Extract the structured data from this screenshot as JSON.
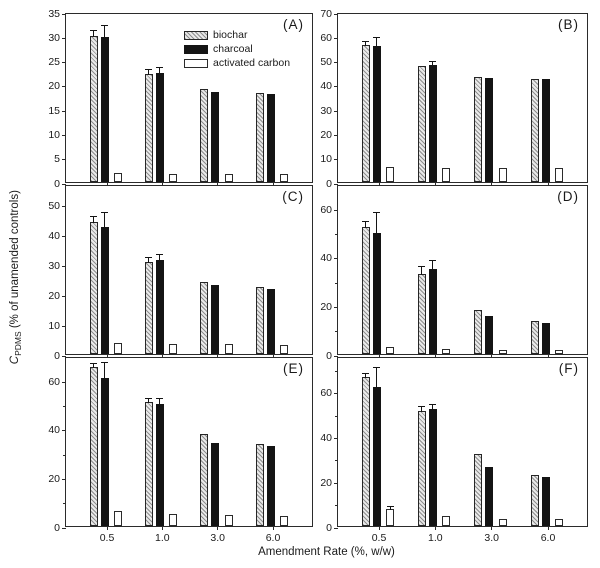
{
  "colors": {
    "background": "#ffffff",
    "axis": "#2b2b2b",
    "text": "#1a1a1a",
    "bar_charcoal": "#141414",
    "bar_biochar_hatch_line": "#8f8f8f",
    "bar_biochar_hatch_bg": "#e9e9e9",
    "bar_activated_carbon": "#ffffff"
  },
  "legend": {
    "items": [
      {
        "label": "biochar",
        "swatch": "hatch"
      },
      {
        "label": "charcoal",
        "swatch": "solid"
      },
      {
        "label": "activated carbon",
        "swatch": "outline"
      }
    ]
  },
  "chart_data": {
    "type": "bar",
    "layout": "2x3 panel grid, grouped bars with error bars, grid off, legend inside panel A",
    "categories": [
      "0.5",
      "1.0",
      "3.0",
      "6.0"
    ],
    "x_label": "Amendment Rate (%, w/w)",
    "y_label": "CPDMS (% of unamended controls)",
    "y_label_parts": {
      "symbol": "C",
      "subscript": "PDMS",
      "rest": " (% of unamended controls)"
    },
    "series_names": [
      "biochar",
      "charcoal",
      "activated carbon"
    ],
    "panels": [
      {
        "id": "A",
        "label": "(A)",
        "ylim": [
          0,
          35
        ],
        "yticks": [
          0,
          5,
          10,
          15,
          20,
          25,
          30,
          35
        ],
        "minor_yticks": [],
        "series": [
          {
            "name": "biochar",
            "values": [
              30.1,
              22.2,
              19.1,
              18.4
            ],
            "errors": [
              0.9,
              0.8,
              0,
              0
            ]
          },
          {
            "name": "charcoal",
            "values": [
              29.8,
              22.5,
              18.5,
              18.1
            ],
            "errors": [
              2.4,
              0.9,
              0,
              0
            ]
          },
          {
            "name": "activated carbon",
            "values": [
              1.8,
              1.7,
              1.7,
              1.6
            ],
            "errors": [
              0,
              0,
              0,
              0
            ]
          }
        ]
      },
      {
        "id": "B",
        "label": "(B)",
        "ylim": [
          0,
          70
        ],
        "yticks": [
          0,
          10,
          20,
          30,
          40,
          50,
          60,
          70
        ],
        "minor_yticks": [],
        "series": [
          {
            "name": "biochar",
            "values": [
              56.5,
              47.6,
              43.4,
              42.6
            ],
            "errors": [
              1.2,
              0,
              0,
              0
            ]
          },
          {
            "name": "charcoal",
            "values": [
              56.0,
              48.3,
              42.8,
              42.3
            ],
            "errors": [
              3.3,
              1.1,
              0,
              0
            ]
          },
          {
            "name": "activated carbon",
            "values": [
              6.2,
              5.9,
              5.8,
              5.7
            ],
            "errors": [
              0,
              0,
              0,
              0
            ]
          }
        ]
      },
      {
        "id": "C",
        "label": "(C)",
        "ylim": [
          0,
          57
        ],
        "yticks": [
          0,
          10,
          20,
          30,
          40,
          50
        ],
        "minor_yticks": [],
        "series": [
          {
            "name": "biochar",
            "values": [
              44.3,
              31.0,
              24.0,
              22.4
            ],
            "errors": [
              1.7,
              1.3,
              0,
              0
            ]
          },
          {
            "name": "charcoal",
            "values": [
              42.5,
              31.5,
              23.0,
              21.8
            ],
            "errors": [
              4.8,
              1.8,
              0,
              0
            ]
          },
          {
            "name": "activated carbon",
            "values": [
              3.7,
              3.3,
              3.4,
              3.1
            ],
            "errors": [
              0,
              0,
              0,
              0
            ]
          }
        ]
      },
      {
        "id": "D",
        "label": "(D)",
        "ylim": [
          0,
          70
        ],
        "yticks": [
          0,
          20,
          40,
          60
        ],
        "minor_yticks": [
          10,
          30,
          50
        ],
        "series": [
          {
            "name": "biochar",
            "values": [
              52.5,
              33.0,
              18.0,
              13.8
            ],
            "errors": [
              1.8,
              3.0,
              0,
              0
            ]
          },
          {
            "name": "charcoal",
            "values": [
              50.0,
              35.0,
              15.6,
              12.8
            ],
            "errors": [
              8.2,
              3.5,
              0,
              0
            ]
          },
          {
            "name": "activated carbon",
            "values": [
              3.0,
              2.2,
              1.8,
              1.6
            ],
            "errors": [
              0,
              0,
              0,
              0
            ]
          }
        ]
      },
      {
        "id": "E",
        "label": "(E)",
        "ylim": [
          0,
          70
        ],
        "yticks": [
          0,
          20,
          40,
          60
        ],
        "minor_yticks": [
          10,
          30,
          50
        ],
        "series": [
          {
            "name": "biochar",
            "values": [
              65.5,
              51.0,
              38.0,
              33.7
            ],
            "errors": [
              1.2,
              1.5,
              0,
              0
            ]
          },
          {
            "name": "charcoal",
            "values": [
              61.0,
              50.3,
              34.3,
              32.9
            ],
            "errors": [
              6.0,
              1.8,
              0,
              0
            ]
          },
          {
            "name": "activated carbon",
            "values": [
              6.3,
              5.0,
              4.5,
              4.3
            ],
            "errors": [
              0,
              0,
              0,
              0
            ]
          }
        ]
      },
      {
        "id": "F",
        "label": "(F)",
        "ylim": [
          0,
          76
        ],
        "yticks": [
          0,
          20,
          40,
          60
        ],
        "minor_yticks": [
          10,
          30,
          50,
          70
        ],
        "series": [
          {
            "name": "biochar",
            "values": [
              66.5,
              51.5,
              32.0,
              23.0
            ],
            "errors": [
              1.4,
              1.6,
              0,
              0
            ]
          },
          {
            "name": "charcoal",
            "values": [
              62.0,
              52.3,
              26.5,
              21.8
            ],
            "errors": [
              8.5,
              1.8,
              0,
              0
            ]
          },
          {
            "name": "activated carbon",
            "values": [
              7.8,
              4.3,
              3.2,
              3.0
            ],
            "errors": [
              0.8,
              0,
              0,
              0
            ]
          }
        ]
      }
    ]
  }
}
